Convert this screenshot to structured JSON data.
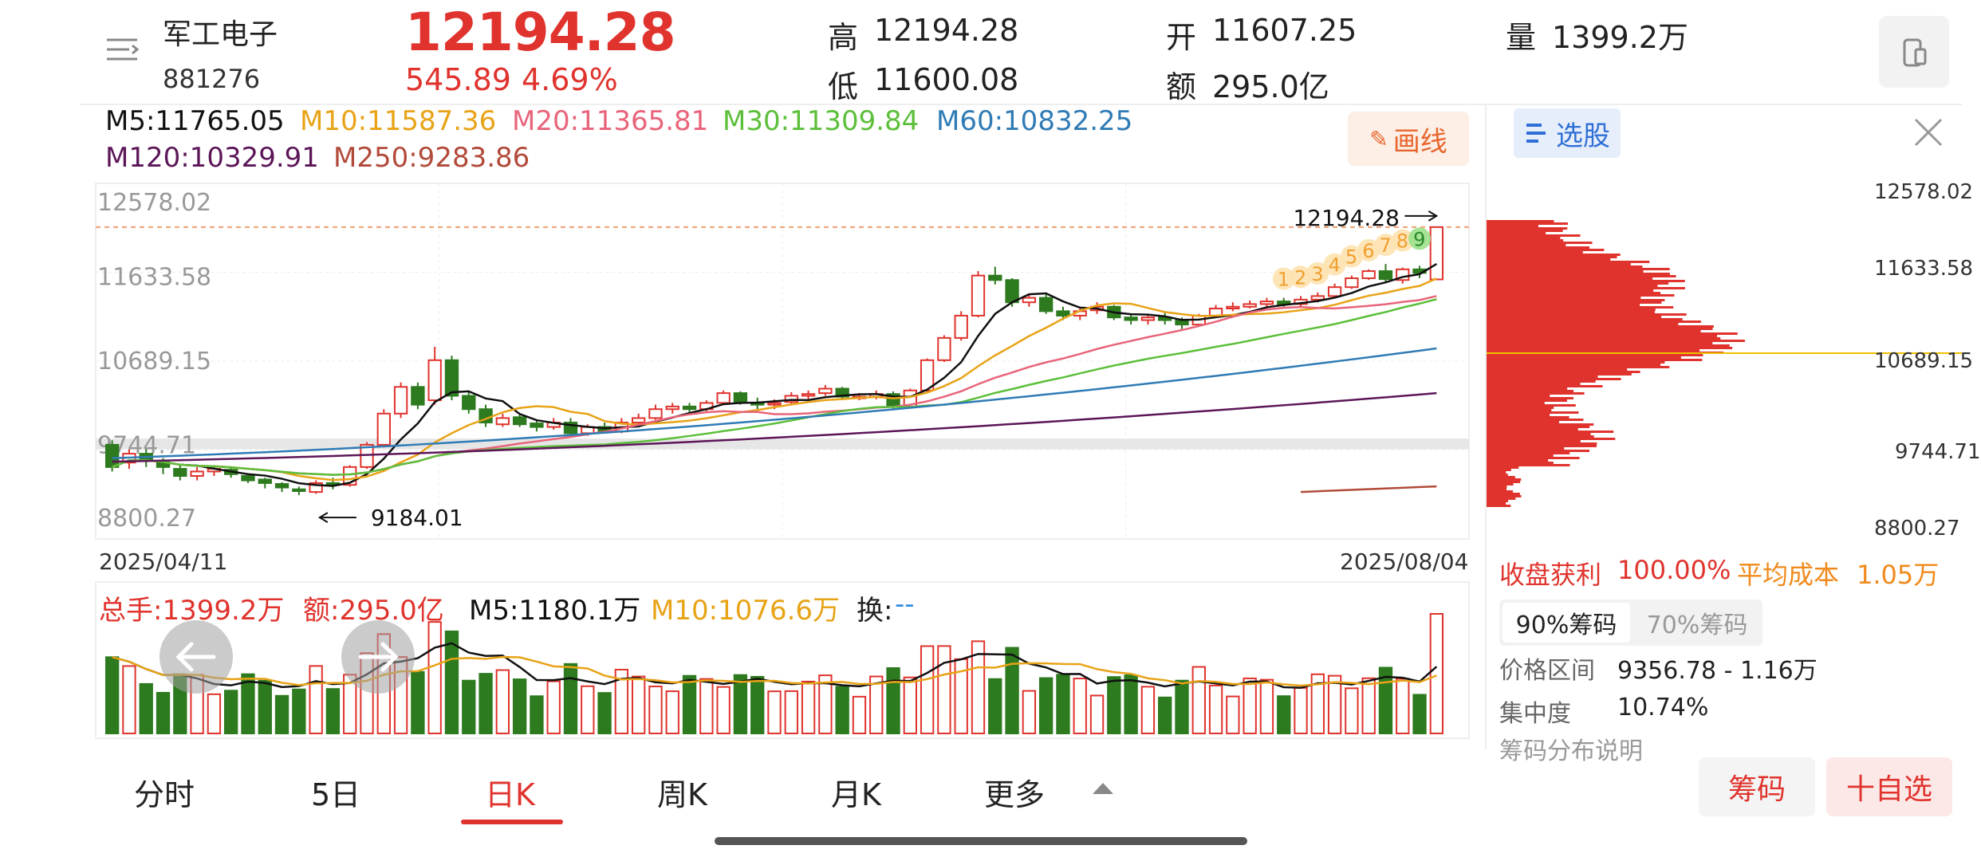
{
  "header": {
    "stock_name": "军工电子",
    "stock_code": "881276",
    "price": "12194.28",
    "change": "545.89",
    "change_pct": "4.69%",
    "high_label": "高",
    "high": "12194.28",
    "low_label": "低",
    "low": "11600.08",
    "open_label": "开",
    "open": "11607.25",
    "amount_label": "额",
    "amount": "295.0亿",
    "volume_label": "量",
    "volume": "1399.2万"
  },
  "ma": {
    "m5": "M5:11765.05",
    "m10": "M10:11587.36",
    "m20": "M20:11365.81",
    "m30": "M30:11309.84",
    "m60": "M60:10832.25",
    "m120": "M120:10329.91",
    "m250": "M250:9283.86"
  },
  "draw_button": "画线",
  "chart": {
    "y_ticks": [
      "12578.02",
      "11633.58",
      "10689.15",
      "9744.71",
      "8800.27"
    ],
    "date_start": "2025/04/11",
    "date_end": "2025/08/04",
    "high_annotation": "12194.28",
    "low_annotation": "9184.01",
    "td_counts": [
      "1",
      "2",
      "3",
      "4",
      "5",
      "6",
      "7",
      "8",
      "9"
    ]
  },
  "volume_bar": {
    "total": "总手:1399.2万",
    "amount": "额:295.0亿",
    "m5": "M5:1180.1万",
    "m10": "M10:1076.6万",
    "turnover_label": "换:",
    "turnover_value": "--"
  },
  "tabs": [
    "分时",
    "5日",
    "日K",
    "周K",
    "月K",
    "更多"
  ],
  "active_tab": "日K",
  "side": {
    "pick_button": "选股",
    "y_ticks": [
      "12578.02",
      "11633.58",
      "10689.15",
      "9744.71",
      "8800.27"
    ],
    "profit_label": "收盘获利",
    "profit_value": "100.00%",
    "avg_cost_label": "平均成本",
    "avg_cost_value": "1.05万",
    "chip90": "90%筹码",
    "chip70": "70%筹码",
    "range_label": "价格区间",
    "range_value": "9356.78 - 1.16万",
    "conc_label": "集中度",
    "conc_value": "10.74%",
    "desc_label": "筹码分布说明",
    "chip_button": "筹码",
    "watch_button": "十自选"
  },
  "colors": {
    "up": "#e0332d",
    "down": "#2d7a1f",
    "m5": "#111111",
    "m10": "#e8a317",
    "m20": "#e8647a",
    "m30": "#5cbf3a",
    "m60": "#2f7bb5",
    "m120": "#5c1658",
    "m250": "#b24a3a"
  },
  "chart_data": {
    "type": "candlestick",
    "date_range": [
      "2025/04/11",
      "2025/08/04"
    ],
    "ylim": [
      8800.27,
      12578.02
    ],
    "last": {
      "open": 11607.25,
      "high": 12194.28,
      "low": 11600.08,
      "close": 12194.28
    },
    "period_low": 9184.01,
    "candles": [
      [
        9750,
        9500,
        9800,
        9450
      ],
      [
        9550,
        9650,
        9700,
        9480
      ],
      [
        9650,
        9580,
        9700,
        9500
      ],
      [
        9560,
        9500,
        9600,
        9420
      ],
      [
        9480,
        9400,
        9520,
        9350
      ],
      [
        9400,
        9450,
        9500,
        9350
      ],
      [
        9450,
        9480,
        9520,
        9400
      ],
      [
        9470,
        9420,
        9500,
        9380
      ],
      [
        9400,
        9350,
        9420,
        9320
      ],
      [
        9360,
        9320,
        9380,
        9260
      ],
      [
        9310,
        9270,
        9330,
        9220
      ],
      [
        9250,
        9230,
        9280,
        9184
      ],
      [
        9220,
        9320,
        9350,
        9200
      ],
      [
        9320,
        9300,
        9380,
        9250
      ],
      [
        9300,
        9500,
        9520,
        9280
      ],
      [
        9500,
        9750,
        9780,
        9480
      ],
      [
        9750,
        10100,
        10150,
        9720
      ],
      [
        10100,
        10400,
        10450,
        10050
      ],
      [
        10400,
        10200,
        10450,
        10150
      ],
      [
        10250,
        10700,
        10850,
        10200
      ],
      [
        10700,
        10300,
        10750,
        10250
      ],
      [
        10300,
        10150,
        10350,
        10100
      ],
      [
        10150,
        10000,
        10200,
        9950
      ],
      [
        9980,
        10050,
        10100,
        9950
      ],
      [
        10060,
        9980,
        10100,
        9950
      ],
      [
        9990,
        9950,
        10020,
        9900
      ],
      [
        9950,
        10000,
        10050,
        9920
      ],
      [
        10000,
        9880,
        10050,
        9850
      ],
      [
        9880,
        9950,
        9980,
        9850
      ],
      [
        9950,
        9900,
        10000,
        9880
      ],
      [
        9900,
        10000,
        10050,
        9880
      ],
      [
        10000,
        10050,
        10100,
        9980
      ],
      [
        10050,
        10150,
        10200,
        10030
      ],
      [
        10150,
        10180,
        10220,
        10100
      ],
      [
        10180,
        10150,
        10220,
        10100
      ],
      [
        10150,
        10220,
        10250,
        10120
      ],
      [
        10220,
        10330,
        10360,
        10200
      ],
      [
        10330,
        10220,
        10350,
        10200
      ],
      [
        10220,
        10200,
        10280,
        10150
      ],
      [
        10200,
        10220,
        10260,
        10150
      ],
      [
        10230,
        10300,
        10340,
        10200
      ],
      [
        10300,
        10320,
        10360,
        10260
      ],
      [
        10330,
        10380,
        10420,
        10300
      ],
      [
        10380,
        10290,
        10400,
        10260
      ],
      [
        10290,
        10290,
        10330,
        10250
      ],
      [
        10290,
        10320,
        10360,
        10260
      ],
      [
        10320,
        10180,
        10350,
        10150
      ],
      [
        10180,
        10360,
        10380,
        10160
      ],
      [
        10360,
        10700,
        10720,
        10340
      ],
      [
        10700,
        10950,
        10980,
        10680
      ],
      [
        10950,
        11200,
        11250,
        10920
      ],
      [
        11200,
        11650,
        11700,
        11180
      ],
      [
        11650,
        11600,
        11750,
        11550
      ],
      [
        11600,
        11350,
        11620,
        11300
      ],
      [
        11350,
        11400,
        11450,
        11300
      ],
      [
        11400,
        11250,
        11450,
        11220
      ],
      [
        11250,
        11200,
        11300,
        11150
      ],
      [
        11200,
        11250,
        11300,
        11150
      ],
      [
        11260,
        11300,
        11350,
        11220
      ],
      [
        11300,
        11180,
        11320,
        11150
      ],
      [
        11180,
        11150,
        11220,
        11100
      ],
      [
        11150,
        11180,
        11220,
        11100
      ],
      [
        11180,
        11150,
        11230,
        11100
      ],
      [
        11150,
        11100,
        11180,
        11050
      ],
      [
        11100,
        11200,
        11220,
        11080
      ],
      [
        11200,
        11280,
        11320,
        11180
      ],
      [
        11280,
        11300,
        11350,
        11250
      ],
      [
        11300,
        11330,
        11370,
        11280
      ],
      [
        11330,
        11360,
        11400,
        11300
      ],
      [
        11360,
        11330,
        11400,
        11300
      ],
      [
        11330,
        11380,
        11420,
        11300
      ],
      [
        11380,
        11420,
        11460,
        11350
      ],
      [
        11420,
        11520,
        11560,
        11400
      ],
      [
        11520,
        11620,
        11650,
        11500
      ],
      [
        11620,
        11700,
        11720,
        11600
      ],
      [
        11700,
        11610,
        11780,
        11580
      ],
      [
        11600,
        11720,
        11740,
        11560
      ],
      [
        11720,
        11680,
        11760,
        11620
      ],
      [
        11607,
        12194,
        12194,
        11600
      ]
    ],
    "ma_latest": {
      "M5": 11765.05,
      "M10": 11587.36,
      "M20": 11365.81,
      "M30": 11309.84,
      "M60": 10832.25,
      "M120": 10329.91,
      "M250": 9283.86
    },
    "volume_latest": {
      "total_lots": "1399.2万",
      "amount": "295.0亿",
      "M5": "1180.1万",
      "M10": "1076.6万"
    }
  }
}
